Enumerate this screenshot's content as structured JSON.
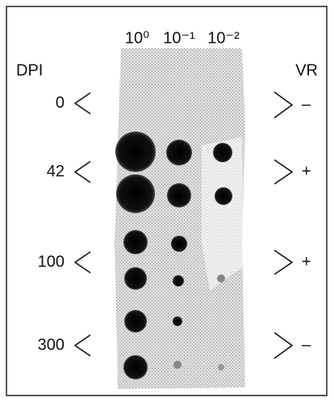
{
  "header": {
    "columns": [
      "10⁰",
      "10⁻¹",
      "10⁻²"
    ],
    "left_label": "DPI",
    "right_label": "VR"
  },
  "rows": [
    {
      "dpi": "0",
      "vr": "–"
    },
    {
      "dpi": "42",
      "vr": "+"
    },
    {
      "dpi": "100",
      "vr": "+"
    },
    {
      "dpi": "300",
      "vr": "–"
    }
  ]
}
